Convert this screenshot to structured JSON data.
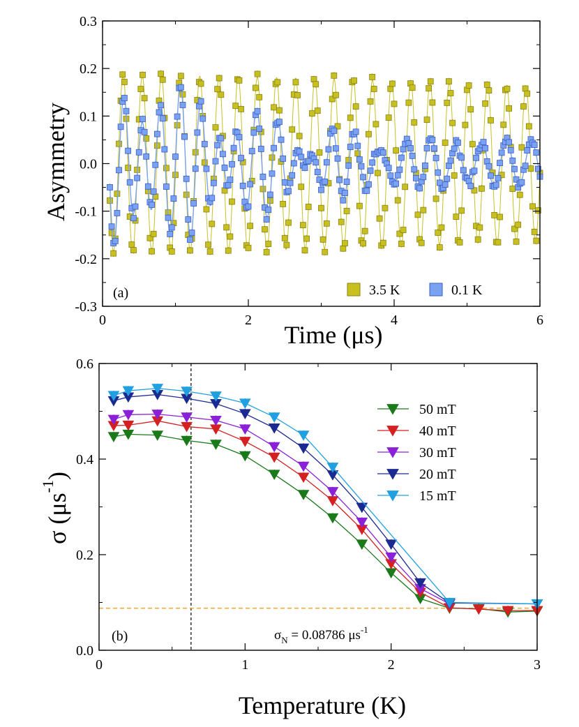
{
  "chart_data": [
    {
      "type": "scatter",
      "panel_label": "(a)",
      "xlabel": "Time (μs)",
      "ylabel": "Asymmetry",
      "xlim": [
        0,
        6
      ],
      "ylim": [
        -0.3,
        0.3
      ],
      "xticks": [
        "0",
        "2",
        "4",
        "6"
      ],
      "yticks": [
        "-0.3",
        "-0.2",
        "-0.1",
        "0.0",
        "0.1",
        "0.2",
        "0.3"
      ],
      "legend_placement": "bottom-right",
      "series": [
        {
          "name": "3.5 K",
          "color": "#c8c020",
          "edge_color": "#8a8410",
          "marker": "square",
          "model": "A·exp(-σ²t²/2)·cos(2πft+φ)",
          "amplitude": 0.185,
          "frequency_MHz": 3.8,
          "phase_deg": -25,
          "sigma_us_inv": 0.088,
          "t_start": 0.1,
          "t_end": 6.0,
          "t_step": 0.025
        },
        {
          "name": "0.1 K",
          "color": "#7aa2f0",
          "edge_color": "#3a5fc8",
          "marker": "square",
          "model": "A·[0.75·exp(-σ²t²/2)·cos(2πf₁t+φ) + 0.25·cos(2πf₂t+φ)]",
          "amplitude": 0.185,
          "frequency_MHz": 3.8,
          "phase_deg": -25,
          "sigma_us_inv": 0.53,
          "background_fraction": 0.25,
          "background_frequency_MHz": 2.9,
          "t_start": 0.1,
          "t_end": 6.0,
          "t_step": 0.025
        }
      ]
    },
    {
      "type": "line",
      "panel_label": "(b)",
      "xlabel": "Temperature (K)",
      "ylabel": "σ (μs⁻¹)",
      "xlim": [
        0,
        3
      ],
      "ylim": [
        0.0,
        0.6
      ],
      "xticks": [
        "0",
        "1",
        "2",
        "3"
      ],
      "yticks": [
        "0.0",
        "0.2",
        "0.4",
        "0.6"
      ],
      "legend_placement": "top-right",
      "reference_lines": {
        "vertical_x": 0.63,
        "horizontal_y": 0.08786,
        "horizontal_color": "#f0a020",
        "annotation": "σN = 0.08786 μs-1"
      },
      "series": [
        {
          "name": "50 mT",
          "color": "#1a7a1a",
          "x": [
            0.1,
            0.2,
            0.4,
            0.6,
            0.8,
            1.0,
            1.2,
            1.4,
            1.6,
            1.8,
            2.0,
            2.2,
            2.4,
            2.6,
            2.8,
            3.0
          ],
          "values": [
            0.447,
            0.452,
            0.45,
            0.439,
            0.431,
            0.407,
            0.368,
            0.326,
            0.277,
            0.222,
            0.162,
            0.108,
            0.088,
            0.087,
            0.08,
            0.082
          ]
        },
        {
          "name": "40 mT",
          "color": "#d42020",
          "x": [
            0.1,
            0.2,
            0.4,
            0.6,
            0.8,
            1.0,
            1.2,
            1.4,
            1.6,
            1.8,
            2.0,
            2.2,
            2.4,
            2.6,
            2.8,
            3.0
          ],
          "values": [
            0.47,
            0.471,
            0.48,
            0.468,
            0.463,
            0.437,
            0.404,
            0.362,
            0.313,
            0.253,
            0.181,
            0.121,
            0.089,
            0.086,
            0.083,
            0.083
          ]
        },
        {
          "name": "30 mT",
          "color": "#8a20d8",
          "x": [
            0.1,
            0.2,
            0.4,
            0.6,
            0.8,
            1.0,
            1.2,
            1.4,
            1.6,
            1.8,
            2.0,
            2.2,
            2.4
          ],
          "values": [
            0.483,
            0.493,
            0.494,
            0.488,
            0.481,
            0.463,
            0.426,
            0.385,
            0.332,
            0.268,
            0.195,
            0.129,
            0.097
          ]
        },
        {
          "name": "20 mT",
          "color": "#1a2a90",
          "x": [
            0.1,
            0.2,
            0.4,
            0.6,
            0.8,
            1.0,
            1.2,
            1.4,
            1.6,
            1.8,
            2.0,
            2.2,
            2.4,
            3.0
          ],
          "values": [
            0.522,
            0.53,
            0.535,
            0.527,
            0.516,
            0.495,
            0.465,
            0.423,
            0.367,
            0.299,
            0.222,
            0.141,
            0.099,
            0.097
          ]
        },
        {
          "name": "15 mT",
          "color": "#20a0e0",
          "x": [
            0.1,
            0.2,
            0.4,
            0.6,
            0.8,
            1.0,
            1.2,
            1.4,
            1.6,
            2.4,
            3.0
          ],
          "values": [
            0.533,
            0.543,
            0.548,
            0.542,
            0.532,
            0.517,
            0.488,
            0.45,
            0.383,
            0.1,
            0.097
          ]
        }
      ]
    }
  ]
}
